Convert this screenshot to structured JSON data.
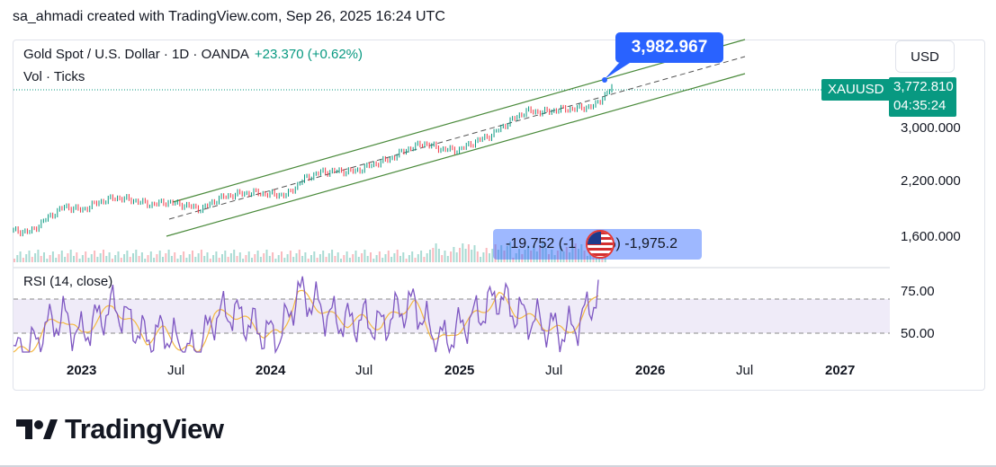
{
  "header": {
    "credit": "sa_ahmadi created with TradingView.com, Sep 26, 2025 16:24 UTC"
  },
  "legend": {
    "title": "Gold Spot / U.S. Dollar · 1D · OANDA",
    "change": "+23.370 (+0.62%)",
    "volume": "Vol · Ticks",
    "rsi": "RSI (14, close)"
  },
  "currency": "USD",
  "symbol_tag": "XAUUSD",
  "price_tag": {
    "price": "3,772.810",
    "countdown": "04:35:24"
  },
  "callout": "3,982.967",
  "measure_text": "-19.752 (-1",
  "measure_text_tail": "%) -1,975.2",
  "colors": {
    "up": "#089981",
    "down": "#f23645",
    "channel": "#4a8a3b",
    "rsi": "#7e57c2",
    "rsi_ma": "#f5b942",
    "accent": "#2962ff"
  },
  "logo": {
    "text": "TradingView",
    "icon": "tradingview-logo-icon"
  },
  "chart_data": [
    {
      "type": "line",
      "title": "Gold Spot / U.S. Dollar · 1D · OANDA",
      "x": [
        "2022-10",
        "2022-11",
        "2022-12",
        "2023-01",
        "2023-02",
        "2023-03",
        "2023-04",
        "2023-05",
        "2023-06",
        "2023-07",
        "2023-08",
        "2023-09",
        "2023-10",
        "2023-11",
        "2023-12",
        "2024-01",
        "2024-02",
        "2024-03",
        "2024-04",
        "2024-05",
        "2024-06",
        "2024-07",
        "2024-08",
        "2024-09",
        "2024-10",
        "2024-11",
        "2024-12",
        "2025-01",
        "2025-02",
        "2025-03",
        "2025-04",
        "2025-05",
        "2025-06",
        "2025-07",
        "2025-08",
        "2025-09"
      ],
      "series": [
        {
          "values": [
            1650,
            1640,
            1780,
            1900,
            1860,
            1950,
            2000,
            1970,
            1920,
            1950,
            1915,
            1870,
            1990,
            2040,
            2060,
            2040,
            2030,
            2230,
            2320,
            2330,
            2330,
            2420,
            2500,
            2640,
            2740,
            2650,
            2630,
            2760,
            2880,
            3100,
            3300,
            3280,
            3330,
            3350,
            3400,
            3772.81
          ]
        }
      ],
      "y_ticks": [
        "1,600.000",
        "2,200.000",
        "3,000.000"
      ],
      "x_ticks": [
        "2023",
        "Jul",
        "2024",
        "Jul",
        "2025",
        "Jul",
        "2026",
        "Jul",
        "2027"
      ],
      "scale": "log",
      "annotations": [
        "3,982.967"
      ]
    },
    {
      "type": "line",
      "title": "RSI (14, close)",
      "y_ticks": [
        "75.00",
        "50.00"
      ],
      "series": [
        {
          "values": [
            35,
            38,
            55,
            62,
            48,
            60,
            70,
            58,
            45,
            52,
            40,
            35,
            62,
            66,
            58,
            50,
            48,
            80,
            72,
            62,
            58,
            60,
            55,
            66,
            72,
            50,
            44,
            58,
            65,
            78,
            66,
            60,
            55,
            50,
            60,
            80
          ]
        }
      ]
    }
  ]
}
